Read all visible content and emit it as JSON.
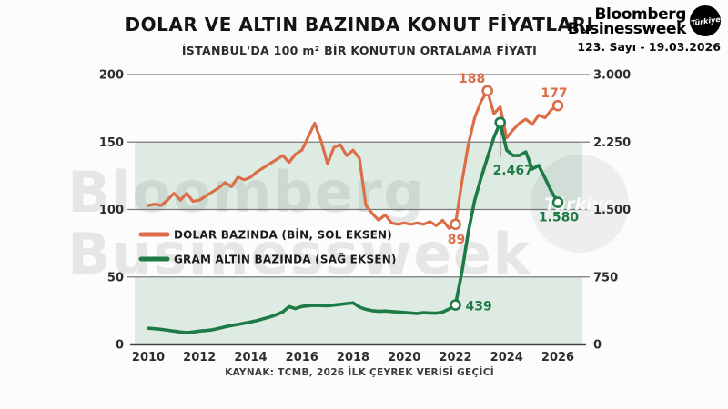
{
  "header": {
    "title": "DOLAR VE ALTIN BAZINDA KONUT FİYATLARI",
    "subtitle": "İSTANBUL'DA 100 m² BİR KONUTUN ORTALAMA FİYATI"
  },
  "masthead": {
    "brand_line1": "Bloomberg",
    "brand_line2": "Businessweek",
    "badge": "Türkiye",
    "issue": "123. Sayı - 19.03.2026"
  },
  "legend": [
    {
      "label": "DOLAR BAZINDA (BİN, SOL EKSEN)",
      "color": "#DB6E48"
    },
    {
      "label": "GRAM ALTIN BAZINDA (SAĞ EKSEN)",
      "color": "#1E7B45"
    }
  ],
  "watermark": {
    "line1": "Bloomberg",
    "line2": "Businessweek",
    "badge": "Türkiye"
  },
  "source": "KAYNAK: TCMB, 2026 İLK ÇEYREK VERİSİ GEÇİCİ",
  "colors": {
    "orange": "#DB6E48",
    "green": "#1E7B45",
    "band": "#DDEBE3",
    "grid": "#7a7a7a",
    "axis": "#444444",
    "tick_label": "#2d2d2d",
    "legend_label": "#1b1b1b",
    "connector": "#3a3a3a",
    "watermark_text": "rgba(115,125,118,0.16)",
    "watermark_circle": "rgba(60,60,60,0.07)",
    "watermark_circle_text": "rgba(255,255,255,0.88)"
  },
  "chart_data": {
    "type": "line",
    "title": "DOLAR VE ALTIN BAZINDA KONUT FİYATLARI",
    "subtitle": "İSTANBUL'DA 100 m² BİR KONUTUN ORTALAMA FİYATI",
    "grid": true,
    "legend_position": "middle-left",
    "x_ticks": [
      {
        "label": "2010",
        "v": 2010
      },
      {
        "label": "2012",
        "v": 2012
      },
      {
        "label": "2014",
        "v": 2014
      },
      {
        "label": "2016",
        "v": 2016
      },
      {
        "label": "2018",
        "v": 2018
      },
      {
        "label": "2020",
        "v": 2020
      },
      {
        "label": "2022",
        "v": 2022
      },
      {
        "label": "2024",
        "v": 2024
      },
      {
        "label": "2026",
        "v": 2026
      }
    ],
    "x_range": [
      2010,
      2026
    ],
    "left_axis": {
      "max": 200,
      "ticks": [
        {
          "label": "200",
          "v": 200
        },
        {
          "label": "150",
          "v": 150
        },
        {
          "label": "100",
          "v": 100
        },
        {
          "label": "50",
          "v": 50
        },
        {
          "label": "0",
          "v": 0
        }
      ]
    },
    "right_axis": {
      "max": 3000,
      "ticks": [
        {
          "label": "3.000",
          "v": 3000
        },
        {
          "label": "2.250",
          "v": 2250
        },
        {
          "label": "1.500",
          "v": 1500
        },
        {
          "label": "750",
          "v": 750
        },
        {
          "label": "0",
          "v": 0
        }
      ]
    },
    "bands_left_units": [
      [
        100,
        150
      ],
      [
        0,
        50
      ]
    ],
    "series": [
      {
        "name": "DOLAR BAZINDA (BİN, SOL EKSEN)",
        "axis": "left",
        "color": "#DB6E48",
        "width": 3.2,
        "points": [
          [
            2010,
            103
          ],
          [
            2010.25,
            104
          ],
          [
            2010.5,
            103
          ],
          [
            2010.75,
            107
          ],
          [
            2011,
            112
          ],
          [
            2011.25,
            107
          ],
          [
            2011.5,
            112
          ],
          [
            2011.75,
            106
          ],
          [
            2012,
            107
          ],
          [
            2012.25,
            110
          ],
          [
            2012.5,
            113
          ],
          [
            2012.75,
            116
          ],
          [
            2013,
            120
          ],
          [
            2013.25,
            117
          ],
          [
            2013.5,
            124
          ],
          [
            2013.75,
            122
          ],
          [
            2014,
            124
          ],
          [
            2014.25,
            128
          ],
          [
            2014.5,
            131
          ],
          [
            2014.75,
            134
          ],
          [
            2015,
            137
          ],
          [
            2015.25,
            140
          ],
          [
            2015.5,
            135
          ],
          [
            2015.75,
            141
          ],
          [
            2016,
            144
          ],
          [
            2016.25,
            154
          ],
          [
            2016.5,
            164
          ],
          [
            2016.75,
            151
          ],
          [
            2017,
            134
          ],
          [
            2017.25,
            146
          ],
          [
            2017.5,
            148
          ],
          [
            2017.75,
            140
          ],
          [
            2018,
            144
          ],
          [
            2018.25,
            138
          ],
          [
            2018.5,
            103
          ],
          [
            2018.75,
            97
          ],
          [
            2019,
            92
          ],
          [
            2019.25,
            96
          ],
          [
            2019.5,
            90
          ],
          [
            2019.75,
            89
          ],
          [
            2020,
            90
          ],
          [
            2020.25,
            89
          ],
          [
            2020.5,
            90
          ],
          [
            2020.75,
            89
          ],
          [
            2021,
            91
          ],
          [
            2021.25,
            88
          ],
          [
            2021.5,
            92
          ],
          [
            2021.75,
            86
          ],
          [
            2022,
            89
          ],
          [
            2022.25,
            120
          ],
          [
            2022.5,
            148
          ],
          [
            2022.75,
            168
          ],
          [
            2023,
            180
          ],
          [
            2023.25,
            188
          ],
          [
            2023.5,
            171
          ],
          [
            2023.75,
            176
          ],
          [
            2024,
            153
          ],
          [
            2024.25,
            159
          ],
          [
            2024.5,
            164
          ],
          [
            2024.75,
            167
          ],
          [
            2025,
            163
          ],
          [
            2025.25,
            170
          ],
          [
            2025.5,
            168
          ],
          [
            2025.75,
            174
          ],
          [
            2026,
            177
          ]
        ]
      },
      {
        "name": "GRAM ALTIN BAZINDA (SAĞ EKSEN)",
        "axis": "right",
        "color": "#1E7B45",
        "width": 3.6,
        "points": [
          [
            2010,
            180
          ],
          [
            2010.25,
            175
          ],
          [
            2010.5,
            168
          ],
          [
            2010.75,
            158
          ],
          [
            2011,
            148
          ],
          [
            2011.25,
            138
          ],
          [
            2011.5,
            132
          ],
          [
            2011.75,
            138
          ],
          [
            2012,
            148
          ],
          [
            2012.25,
            155
          ],
          [
            2012.5,
            163
          ],
          [
            2012.75,
            178
          ],
          [
            2013,
            196
          ],
          [
            2013.25,
            210
          ],
          [
            2013.5,
            222
          ],
          [
            2013.75,
            236
          ],
          [
            2014,
            250
          ],
          [
            2014.25,
            266
          ],
          [
            2014.5,
            285
          ],
          [
            2014.75,
            305
          ],
          [
            2015,
            330
          ],
          [
            2015.25,
            362
          ],
          [
            2015.5,
            420
          ],
          [
            2015.75,
            398
          ],
          [
            2016,
            422
          ],
          [
            2016.25,
            430
          ],
          [
            2016.5,
            434
          ],
          [
            2016.75,
            432
          ],
          [
            2017,
            430
          ],
          [
            2017.25,
            437
          ],
          [
            2017.5,
            445
          ],
          [
            2017.75,
            455
          ],
          [
            2018,
            462
          ],
          [
            2018.25,
            415
          ],
          [
            2018.5,
            390
          ],
          [
            2018.75,
            375
          ],
          [
            2019,
            368
          ],
          [
            2019.25,
            372
          ],
          [
            2019.5,
            366
          ],
          [
            2019.75,
            361
          ],
          [
            2020,
            356
          ],
          [
            2020.25,
            350
          ],
          [
            2020.5,
            344
          ],
          [
            2020.75,
            353
          ],
          [
            2021,
            350
          ],
          [
            2021.25,
            347
          ],
          [
            2021.5,
            360
          ],
          [
            2021.75,
            394
          ],
          [
            2022,
            439
          ],
          [
            2022.25,
            800
          ],
          [
            2022.5,
            1250
          ],
          [
            2022.75,
            1600
          ],
          [
            2023,
            1850
          ],
          [
            2023.25,
            2080
          ],
          [
            2023.5,
            2300
          ],
          [
            2023.75,
            2467
          ],
          [
            2024,
            2160
          ],
          [
            2024.25,
            2100
          ],
          [
            2024.5,
            2100
          ],
          [
            2024.75,
            2140
          ],
          [
            2025,
            1950
          ],
          [
            2025.25,
            1990
          ],
          [
            2025.5,
            1850
          ],
          [
            2025.75,
            1700
          ],
          [
            2026,
            1580
          ]
        ]
      }
    ],
    "annotations": [
      {
        "label": "188",
        "series": 0,
        "x": 2023.25,
        "value": 188,
        "position": "above-left"
      },
      {
        "label": "177",
        "series": 0,
        "x": 2026,
        "value": 177,
        "position": "above"
      },
      {
        "label": "89",
        "series": 0,
        "x": 2022,
        "value": 89,
        "position": "below"
      },
      {
        "label": "2.467",
        "series": 1,
        "x": 2023.75,
        "value": 2467,
        "position": "connector-below"
      },
      {
        "label": "1.580",
        "series": 1,
        "x": 2026,
        "value": 1580,
        "position": "below"
      },
      {
        "label": "439",
        "series": 1,
        "x": 2022,
        "value": 439,
        "position": "right"
      }
    ]
  }
}
